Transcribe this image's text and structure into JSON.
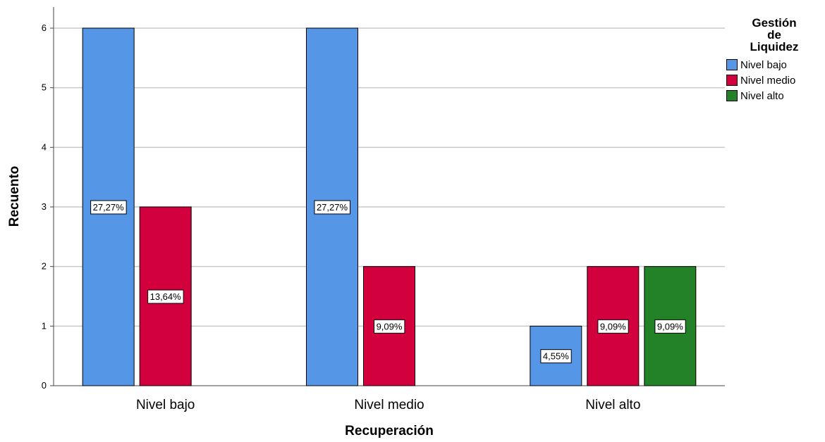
{
  "chart_data": {
    "type": "bar",
    "xlabel": "Recuperación",
    "ylabel": "Recuento",
    "ylim": [
      0,
      6
    ],
    "yticks": [
      0,
      1,
      2,
      3,
      4,
      5,
      6
    ],
    "grid": true,
    "legend_position": "right",
    "legend_title": [
      "Gestión",
      "de",
      "Liquidez"
    ],
    "categories": [
      "Nivel bajo",
      "Nivel medio",
      "Nivel alto"
    ],
    "series": [
      {
        "name": "Nivel bajo",
        "color": "#5596e6",
        "values": [
          6,
          6,
          1
        ],
        "labels": [
          "27,27%",
          "27,27%",
          "4,55%"
        ]
      },
      {
        "name": "Nivel medio",
        "color": "#d2003c",
        "values": [
          3,
          2,
          2
        ],
        "labels": [
          "13,64%",
          "9,09%",
          "9,09%"
        ]
      },
      {
        "name": "Nivel alto",
        "color": "#238228",
        "values": [
          0,
          0,
          2
        ],
        "labels": [
          "",
          "",
          "9,09%"
        ]
      }
    ]
  }
}
